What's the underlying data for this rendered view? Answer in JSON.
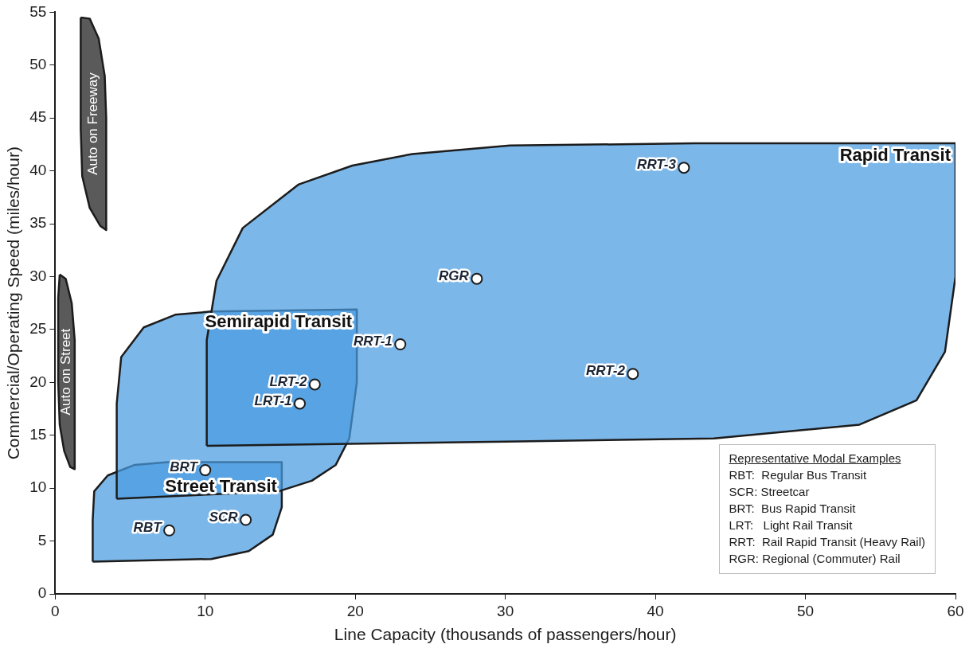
{
  "chart_data": {
    "type": "scatter",
    "xlabel": "Line Capacity (thousands of passengers/hour)",
    "ylabel": "Commercial/Operating Speed (miles/hour)",
    "xlim": [
      0,
      60
    ],
    "xticks": [
      0,
      10,
      20,
      30,
      40,
      50,
      60
    ],
    "ylim": [
      0,
      55
    ],
    "yticks": [
      0,
      5,
      10,
      15,
      20,
      25,
      30,
      35,
      40,
      45,
      50,
      55
    ],
    "grid": false,
    "legend": false,
    "series": [
      {
        "type": "area",
        "name": "Rapid Transit",
        "color": "#4a9be0",
        "x": [
          10.1,
          10.1,
          10.75,
          12.5,
          16.2,
          19.8,
          23.8,
          30.3,
          42.6,
          60,
          60,
          59.3,
          57.4,
          53.6,
          43.9,
          30,
          10.1
        ],
        "values": [
          14,
          24,
          29.6,
          34.6,
          38.7,
          40.5,
          41.6,
          42.4,
          42.6,
          42.6,
          30,
          22.9,
          18.3,
          16,
          14.7,
          14.4,
          14
        ]
      },
      {
        "type": "area",
        "name": "Semirapid Transit",
        "color": "#4a9be0",
        "x": [
          4.1,
          4.1,
          4.4,
          5.9,
          8,
          10.4,
          20.1,
          20.1,
          19.6,
          18.7,
          17.1,
          14.9,
          4.1
        ],
        "values": [
          9,
          18,
          22.4,
          25.2,
          26.4,
          26.7,
          26.9,
          20,
          14.7,
          12.2,
          10.7,
          9.7,
          9
        ]
      },
      {
        "type": "area",
        "name": "Street Transit",
        "color": "#4a9be0",
        "x": [
          2.5,
          2.5,
          2.6,
          3.5,
          5.3,
          7.5,
          15.1,
          15.1,
          14.5,
          12.9,
          10.4,
          2.5
        ],
        "values": [
          3.05,
          7,
          9.7,
          11.2,
          12.2,
          12.45,
          12.45,
          8.2,
          5.6,
          4.05,
          3.3,
          3.05
        ]
      },
      {
        "type": "area",
        "name": "Auto on Freeway",
        "color": "#1a1a1a",
        "x": [
          1.7,
          2.3,
          2.9,
          3.3,
          3.4,
          3.4,
          3,
          2.3,
          1.8,
          1.7,
          1.7
        ],
        "values": [
          54.5,
          54.4,
          52.5,
          49,
          45,
          34.4,
          34.8,
          36.5,
          39.5,
          44,
          54.5
        ]
      },
      {
        "type": "area",
        "name": "Auto on Street",
        "color": "#1a1a1a",
        "x": [
          0.3,
          0.7,
          1.1,
          1.3,
          1.3,
          1,
          0.6,
          0.3,
          0.2,
          0.2,
          0.3
        ],
        "values": [
          30.2,
          29.8,
          27.5,
          24,
          11.8,
          12,
          13.5,
          16,
          20,
          28,
          30.2
        ]
      },
      {
        "name": "RRT-3",
        "color": "#ffffff",
        "x": [
          41.9
        ],
        "values": [
          40.3
        ]
      },
      {
        "name": "RGR",
        "color": "#ffffff",
        "x": [
          28.1
        ],
        "values": [
          29.8
        ]
      },
      {
        "name": "RRT-1",
        "color": "#ffffff",
        "x": [
          23
        ],
        "values": [
          23.6
        ]
      },
      {
        "name": "RRT-2",
        "color": "#ffffff",
        "x": [
          38.5
        ],
        "values": [
          20.8
        ]
      },
      {
        "name": "LRT-2",
        "color": "#ffffff",
        "x": [
          17.3
        ],
        "values": [
          19.8
        ]
      },
      {
        "name": "LRT-1",
        "color": "#ffffff",
        "x": [
          16.3
        ],
        "values": [
          18
        ]
      },
      {
        "name": "BRT",
        "color": "#ffffff",
        "x": [
          10
        ],
        "values": [
          11.7
        ]
      },
      {
        "name": "SCR",
        "color": "#ffffff",
        "x": [
          12.7
        ],
        "values": [
          7
        ]
      },
      {
        "name": "RBT",
        "color": "#ffffff",
        "x": [
          7.6
        ],
        "values": [
          6
        ]
      }
    ],
    "annotations": [
      "Representative Modal Examples",
      "RBT:  Regular Bus Transit",
      "SCR: Streetcar",
      "BRT:  Bus Rapid Transit",
      "LRT:   Light Rail Transit",
      "RRT:  Rail Rapid Transit (Heavy Rail)",
      "RGR: Regional (Commuter) Rail"
    ]
  }
}
